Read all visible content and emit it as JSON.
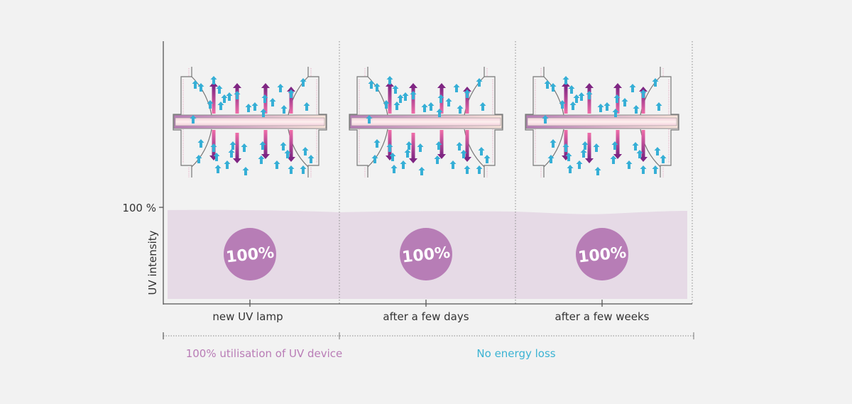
{
  "y_axis": {
    "label": "UV intensity",
    "tick_label": "100 %"
  },
  "stages": [
    {
      "label": "new UV lamp",
      "intensity_label": "100%"
    },
    {
      "label": "after a few days",
      "intensity_label": "100%"
    },
    {
      "label": "after a few weeks",
      "intensity_label": "100%"
    }
  ],
  "footer": {
    "left_text": "100% utilisation of UV device",
    "right_text": "No energy loss"
  },
  "colors": {
    "band": "#e6dae6",
    "circle": "#b77db6",
    "left_text": "#b97cb6",
    "right_text": "#3bb3d3",
    "blue_arrow": "#36afd6",
    "purple_arrow": "#8b2a8a",
    "pink": "#ee6fa8"
  }
}
